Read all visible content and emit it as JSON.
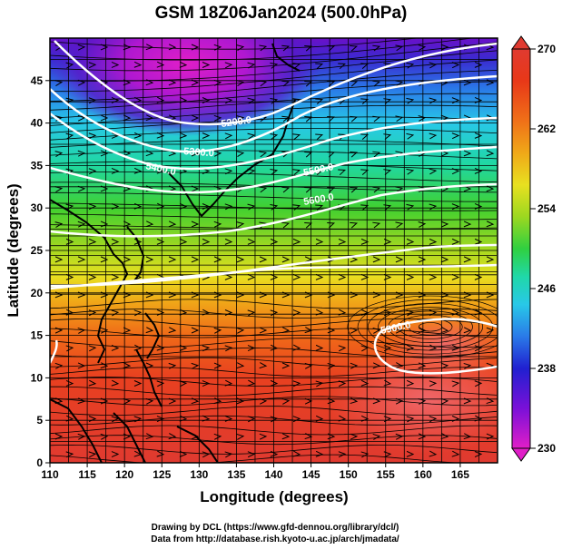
{
  "title": "GSM 18Z06Jan2024 (500.0hPa)",
  "chart_data": {
    "type": "map",
    "xlabel": "Longitude (degrees)",
    "ylabel": "Latitude  (degrees)",
    "xlim": [
      110,
      170
    ],
    "ylim": [
      0,
      50
    ],
    "x_ticks": [
      "110",
      "115",
      "120",
      "125",
      "130",
      "135",
      "140",
      "145",
      "150",
      "155",
      "160",
      "165"
    ],
    "y_ticks": [
      "0",
      "5",
      "10",
      "15",
      "20",
      "25",
      "30",
      "35",
      "40",
      "45"
    ],
    "colorbar": {
      "min": 230,
      "max": 270,
      "labels": [
        "270",
        "262",
        "254",
        "246",
        "238",
        "230"
      ],
      "colors": [
        "#e01ec8",
        "#7a10d8",
        "#2020d0",
        "#2a7ae8",
        "#28c8e8",
        "#20d8a8",
        "#30d040",
        "#9cd820",
        "#e8e020",
        "#f0a818",
        "#f07018",
        "#e83818",
        "#e03a30"
      ]
    },
    "contours": [
      {
        "label": "5200.0"
      },
      {
        "label": "5300.0"
      },
      {
        "label": "5400.0"
      },
      {
        "label": "5500.0"
      },
      {
        "label": "5600.0"
      },
      {
        "label": "5900.0"
      }
    ],
    "grid": true
  },
  "credit": {
    "line1": "Drawing by DCL (https://www.gfd-dennou.org/library/dcl/)",
    "line2": "Data from http://database.rish.kyoto-u.ac.jp/arch/jmadata/"
  }
}
